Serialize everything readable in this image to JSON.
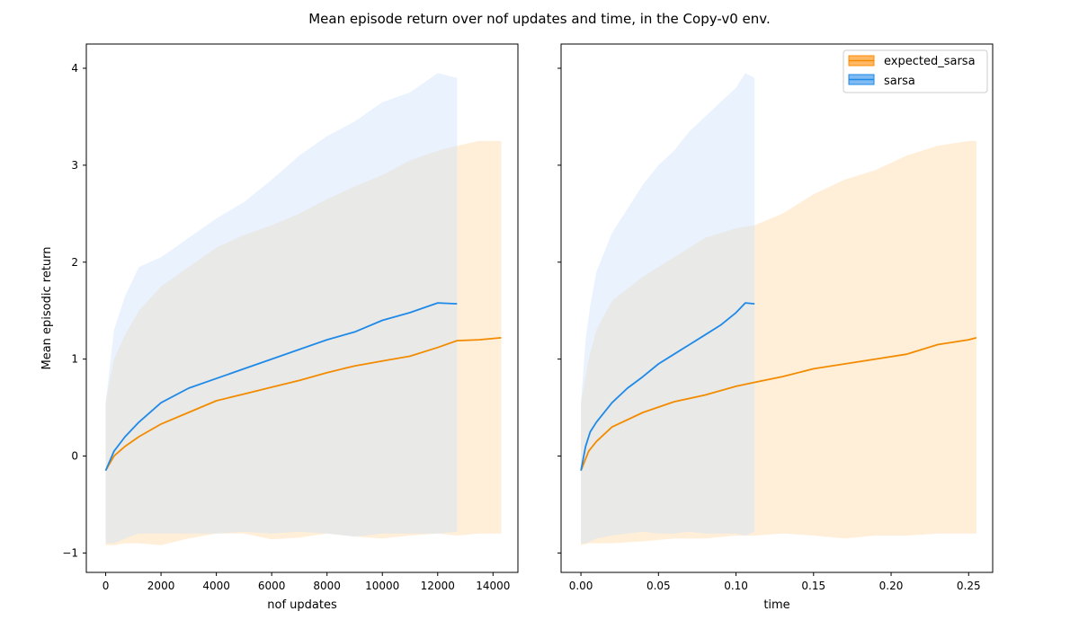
{
  "figure": {
    "title": "Mean episode return over nof updates and time, in the Copy-v0 env."
  },
  "legend": {
    "entries": [
      {
        "name": "expected_sarsa",
        "color": "#ff8c00"
      },
      {
        "name": "sarsa",
        "color": "#1e88e5"
      }
    ],
    "placement": "upper-right of right panel"
  },
  "colors": {
    "expected_sarsa_line": "#f28b00",
    "expected_sarsa_band": "#ffe0b8",
    "sarsa_line": "#1f89e8",
    "sarsa_band": "#cfe3fb"
  },
  "chart_data": [
    {
      "type": "line",
      "xlabel": "nof updates",
      "ylabel": "Mean episodic return",
      "xlim": [
        -700,
        14900
      ],
      "ylim": [
        -1.2,
        4.25
      ],
      "xticks": [
        0,
        2000,
        4000,
        6000,
        8000,
        10000,
        12000,
        14000
      ],
      "xtick_labels": [
        "0",
        "2000",
        "4000",
        "6000",
        "8000",
        "10000",
        "12000",
        "14000"
      ],
      "yticks": [
        -1,
        0,
        1,
        2,
        3,
        4
      ],
      "ytick_labels": [
        "−1",
        "0",
        "1",
        "2",
        "3",
        "4"
      ],
      "grid": false,
      "series": [
        {
          "name": "expected_sarsa",
          "x": [
            0,
            300,
            700,
            1200,
            2000,
            3000,
            4000,
            5000,
            6000,
            7000,
            8000,
            9000,
            10000,
            11000,
            12000,
            12700,
            13500,
            14300
          ],
          "mean": [
            -0.15,
            0.0,
            0.1,
            0.2,
            0.33,
            0.45,
            0.57,
            0.64,
            0.71,
            0.78,
            0.86,
            0.93,
            0.98,
            1.03,
            1.12,
            1.19,
            1.2,
            1.22
          ],
          "upper": [
            0.55,
            1.0,
            1.25,
            1.5,
            1.75,
            1.95,
            2.15,
            2.28,
            2.38,
            2.5,
            2.65,
            2.78,
            2.9,
            3.05,
            3.15,
            3.2,
            3.25,
            3.25
          ],
          "lower": [
            -0.92,
            -0.92,
            -0.9,
            -0.9,
            -0.92,
            -0.85,
            -0.8,
            -0.8,
            -0.86,
            -0.84,
            -0.8,
            -0.83,
            -0.85,
            -0.82,
            -0.8,
            -0.82,
            -0.8,
            -0.8
          ]
        },
        {
          "name": "sarsa",
          "x": [
            0,
            300,
            700,
            1200,
            2000,
            3000,
            4000,
            5000,
            6000,
            7000,
            8000,
            9000,
            10000,
            11000,
            12000,
            12700
          ],
          "mean": [
            -0.15,
            0.05,
            0.2,
            0.35,
            0.55,
            0.7,
            0.8,
            0.9,
            1.0,
            1.1,
            1.2,
            1.28,
            1.4,
            1.48,
            1.58,
            1.57
          ],
          "upper": [
            0.55,
            1.3,
            1.65,
            1.95,
            2.05,
            2.25,
            2.45,
            2.62,
            2.85,
            3.1,
            3.3,
            3.45,
            3.65,
            3.75,
            3.95,
            3.9
          ],
          "lower": [
            -0.9,
            -0.9,
            -0.85,
            -0.8,
            -0.8,
            -0.8,
            -0.8,
            -0.78,
            -0.8,
            -0.78,
            -0.8,
            -0.83,
            -0.8,
            -0.8,
            -0.8,
            -0.78
          ]
        }
      ]
    },
    {
      "type": "line",
      "xlabel": "time",
      "ylabel": "",
      "xlim": [
        -0.0128,
        0.2655
      ],
      "ylim": [
        -1.2,
        4.25
      ],
      "xticks": [
        0.0,
        0.05,
        0.1,
        0.15,
        0.2,
        0.25
      ],
      "xtick_labels": [
        "0.00",
        "0.05",
        "0.10",
        "0.15",
        "0.20",
        "0.25"
      ],
      "yticks": [
        -1,
        0,
        1,
        2,
        3,
        4
      ],
      "ytick_labels": [],
      "grid": false,
      "series": [
        {
          "name": "expected_sarsa",
          "x": [
            0,
            0.005,
            0.01,
            0.02,
            0.04,
            0.06,
            0.08,
            0.1,
            0.112,
            0.13,
            0.15,
            0.17,
            0.19,
            0.21,
            0.23,
            0.25,
            0.255
          ],
          "mean": [
            -0.15,
            0.05,
            0.15,
            0.3,
            0.45,
            0.56,
            0.63,
            0.72,
            0.76,
            0.82,
            0.9,
            0.95,
            1.0,
            1.05,
            1.15,
            1.2,
            1.22
          ],
          "upper": [
            0.55,
            1.0,
            1.3,
            1.6,
            1.85,
            2.05,
            2.25,
            2.35,
            2.38,
            2.5,
            2.7,
            2.85,
            2.95,
            3.1,
            3.2,
            3.25,
            3.25
          ],
          "lower": [
            -0.92,
            -0.9,
            -0.9,
            -0.9,
            -0.88,
            -0.85,
            -0.85,
            -0.82,
            -0.82,
            -0.8,
            -0.82,
            -0.85,
            -0.82,
            -0.82,
            -0.8,
            -0.8,
            -0.8
          ]
        },
        {
          "name": "sarsa",
          "x": [
            0,
            0.003,
            0.006,
            0.01,
            0.02,
            0.03,
            0.04,
            0.05,
            0.06,
            0.07,
            0.08,
            0.09,
            0.1,
            0.106,
            0.112
          ],
          "mean": [
            -0.15,
            0.1,
            0.25,
            0.35,
            0.55,
            0.7,
            0.82,
            0.95,
            1.05,
            1.15,
            1.25,
            1.35,
            1.48,
            1.58,
            1.57
          ],
          "upper": [
            0.55,
            1.2,
            1.55,
            1.9,
            2.3,
            2.55,
            2.8,
            3.0,
            3.15,
            3.35,
            3.5,
            3.65,
            3.8,
            3.95,
            3.9
          ],
          "lower": [
            -0.9,
            -0.9,
            -0.88,
            -0.85,
            -0.82,
            -0.8,
            -0.78,
            -0.8,
            -0.8,
            -0.78,
            -0.8,
            -0.8,
            -0.8,
            -0.82,
            -0.78
          ]
        }
      ]
    }
  ]
}
